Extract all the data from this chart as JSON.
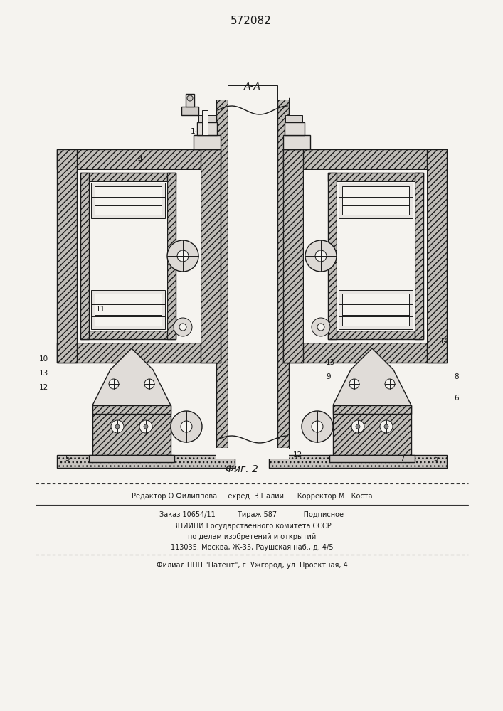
{
  "patent_number": "572082",
  "section_label": "A-A",
  "fig_label": "Фиг. 2",
  "bg_color": "#f5f3ef",
  "line_color": "#1a1a1a",
  "footer_line1": "Редактор О.Филиппова   Техред  З.Палий      Корректор М.  Коста",
  "footer_line2": "Заказ 10654/11          Тираж 587            Подписное",
  "footer_line3": "ВНИИПИ Государственного комитета СССР",
  "footer_line4": "по делам изобретений и открытий",
  "footer_line5": "113035, Москва, Ж-35, Раушская наб., д. 4/5",
  "footer_line6": "Филиал ППП \"Патент\", г. Ужгород, ул. Проектная, 4"
}
